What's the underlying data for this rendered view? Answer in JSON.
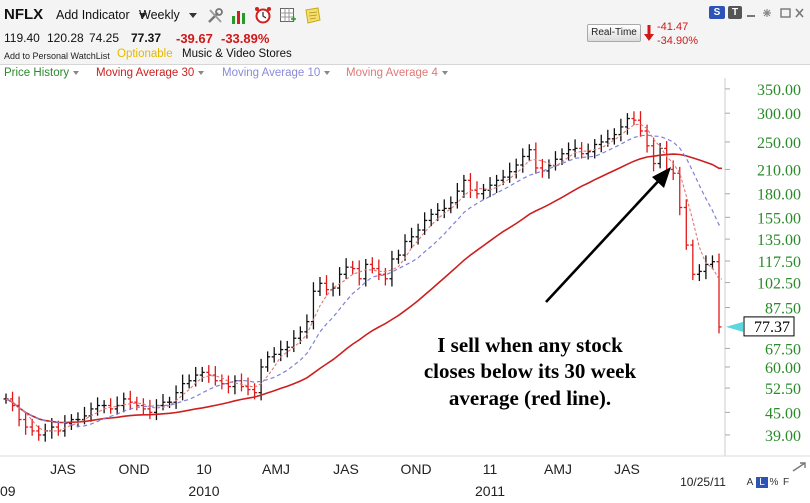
{
  "toolbar": {
    "symbol": "NFLX",
    "add_indicator": "Add Indicator",
    "period": "Weekly"
  },
  "quote": {
    "open": "119.40",
    "high": "120.28",
    "low": "74.25",
    "last": "77.37",
    "change": "-39.67",
    "change_pct": "-33.89%",
    "watchlist": "Add to Personal WatchList",
    "optionable": "Optionable",
    "industry": "Music & Video Stores"
  },
  "realtime": {
    "button": "Real-Time",
    "change": "-41.47",
    "change_pct": "-34.90%"
  },
  "legend": [
    {
      "label": "Price History",
      "color": "#2a8a2a"
    },
    {
      "label": "Moving Average 30",
      "color": "#cc2020"
    },
    {
      "label": "Moving Average 10",
      "color": "#8a8ad8"
    },
    {
      "label": "Moving Average 4",
      "color": "#e07878"
    }
  ],
  "window_controls": {
    "search": "S",
    "tools": "T",
    "footer_letters": [
      "A",
      "L",
      "%",
      "F"
    ]
  },
  "colors": {
    "up": "#111111",
    "down": "#e01818",
    "price_axis": "#2a8a2a",
    "last_marker": "#5cd6e0"
  },
  "chart_data": {
    "type": "line",
    "title": "",
    "xlabel": "",
    "ylabel": "",
    "y_scale": "log",
    "ylim": [
      35,
      375
    ],
    "y_ticks": [
      "350.00",
      "300.00",
      "250.00",
      "210.00",
      "180.00",
      "155.00",
      "135.00",
      "117.50",
      "102.50",
      "87.50",
      "67.50",
      "60.00",
      "52.50",
      "45.00",
      "39.00"
    ],
    "last_price": "77.37",
    "x_month_labels": [
      "JAS",
      "OND",
      "10",
      "AMJ",
      "JAS",
      "OND",
      "11",
      "AMJ",
      "JAS"
    ],
    "x_year_labels": [
      "09",
      "2010",
      "2011"
    ],
    "date_label": "10/25/11",
    "annotation": "I sell when any stock closes below its 30 week average (red line).",
    "closes": [
      49,
      47,
      43,
      41,
      40,
      39,
      40,
      41,
      40,
      42,
      43,
      43,
      44,
      46,
      47,
      47,
      46,
      47,
      49,
      48,
      47,
      46,
      45,
      47,
      48,
      48,
      51,
      54,
      55,
      57,
      58,
      57,
      55,
      54,
      53,
      55,
      53,
      52,
      51,
      60,
      64,
      65,
      67,
      68,
      72,
      75,
      80,
      97,
      102,
      98,
      99,
      108,
      113,
      112,
      105,
      115,
      112,
      108,
      105,
      119,
      122,
      133,
      137,
      143,
      152,
      158,
      162,
      164,
      170,
      183,
      196,
      184,
      180,
      184,
      190,
      196,
      200,
      207,
      216,
      228,
      238,
      212,
      208,
      215,
      224,
      232,
      238,
      240,
      232,
      235,
      246,
      250,
      255,
      262,
      275,
      290,
      287,
      268,
      244,
      218,
      240,
      210,
      205,
      165,
      130,
      108,
      110,
      115,
      117,
      77.37
    ],
    "series": [
      {
        "name": "Price History",
        "values_from": "closes"
      },
      {
        "name": "Moving Average 30",
        "window": 30
      },
      {
        "name": "Moving Average 10",
        "window": 10
      },
      {
        "name": "Moving Average 4",
        "window": 4
      }
    ]
  }
}
